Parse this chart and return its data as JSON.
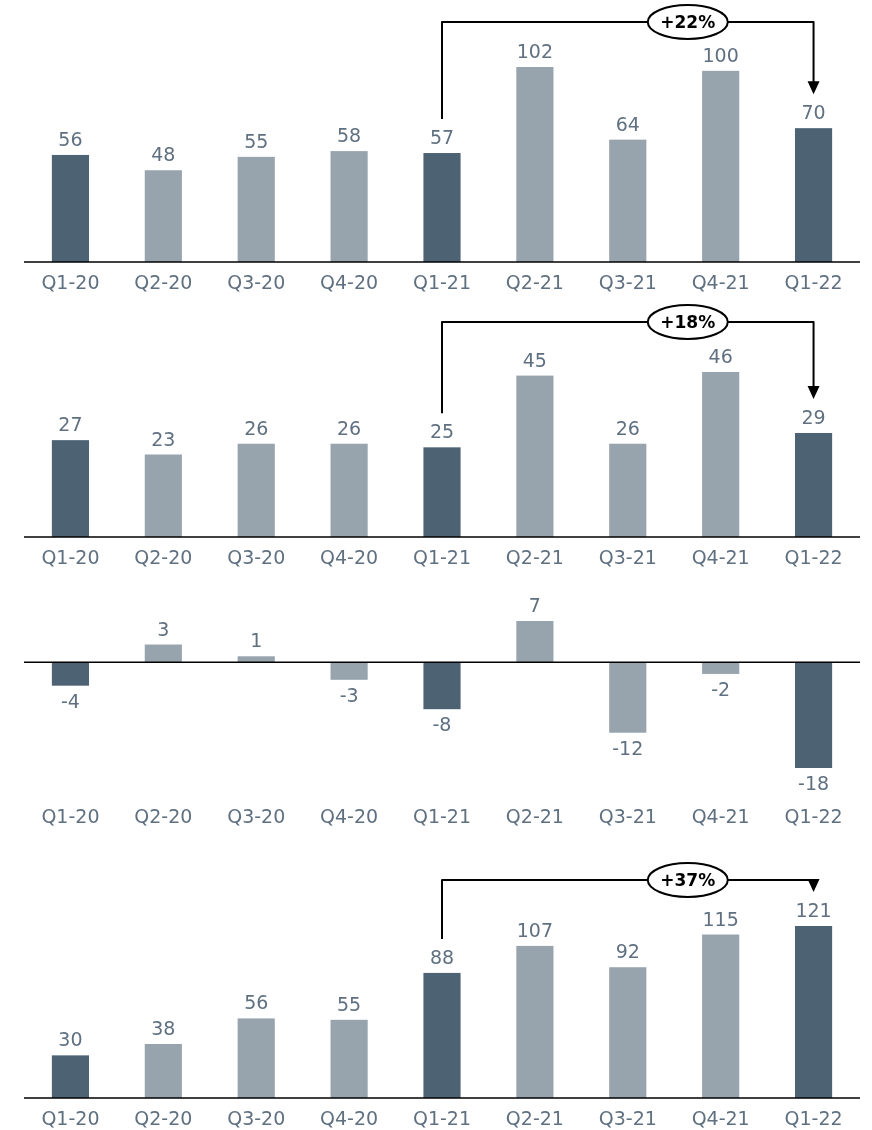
{
  "chart_data": [
    {
      "type": "bar",
      "categories": [
        "Q1-20",
        "Q2-20",
        "Q3-20",
        "Q4-20",
        "Q1-21",
        "Q2-21",
        "Q3-21",
        "Q4-21",
        "Q1-22"
      ],
      "values": [
        56,
        48,
        55,
        58,
        57,
        102,
        64,
        100,
        70
      ],
      "colors": [
        "#4d6374",
        "#97a4ad",
        "#97a4ad",
        "#97a4ad",
        "#4d6374",
        "#97a4ad",
        "#97a4ad",
        "#97a4ad",
        "#4d6374"
      ],
      "data_labels": true,
      "annotations": [
        "+22%"
      ]
    },
    {
      "type": "bar",
      "categories": [
        "Q1-20",
        "Q2-20",
        "Q3-20",
        "Q4-20",
        "Q1-21",
        "Q2-21",
        "Q3-21",
        "Q4-21",
        "Q1-22"
      ],
      "values": [
        27,
        23,
        26,
        26,
        25,
        45,
        26,
        46,
        29
      ],
      "colors": [
        "#4d6374",
        "#97a4ad",
        "#97a4ad",
        "#97a4ad",
        "#4d6374",
        "#97a4ad",
        "#97a4ad",
        "#97a4ad",
        "#4d6374"
      ],
      "data_labels": true,
      "annotations": [
        "+18%"
      ]
    },
    {
      "type": "bar",
      "categories": [
        "Q1-20",
        "Q2-20",
        "Q3-20",
        "Q4-20",
        "Q1-21",
        "Q2-21",
        "Q3-21",
        "Q4-21",
        "Q1-22"
      ],
      "values": [
        -4,
        3,
        1,
        -3,
        -8,
        7,
        -12,
        -2,
        -18
      ],
      "colors": [
        "#4d6374",
        "#97a4ad",
        "#97a4ad",
        "#97a4ad",
        "#4d6374",
        "#97a4ad",
        "#97a4ad",
        "#97a4ad",
        "#4d6374"
      ],
      "data_labels": true
    },
    {
      "type": "bar",
      "categories": [
        "Q1-20",
        "Q2-20",
        "Q3-20",
        "Q4-20",
        "Q1-21",
        "Q2-21",
        "Q3-21",
        "Q4-21",
        "Q1-22"
      ],
      "values": [
        30,
        38,
        56,
        55,
        88,
        107,
        92,
        115,
        121
      ],
      "colors": [
        "#4d6374",
        "#97a4ad",
        "#97a4ad",
        "#97a4ad",
        "#4d6374",
        "#97a4ad",
        "#97a4ad",
        "#97a4ad",
        "#4d6374"
      ],
      "data_labels": true,
      "annotations": [
        "+37%"
      ]
    }
  ]
}
